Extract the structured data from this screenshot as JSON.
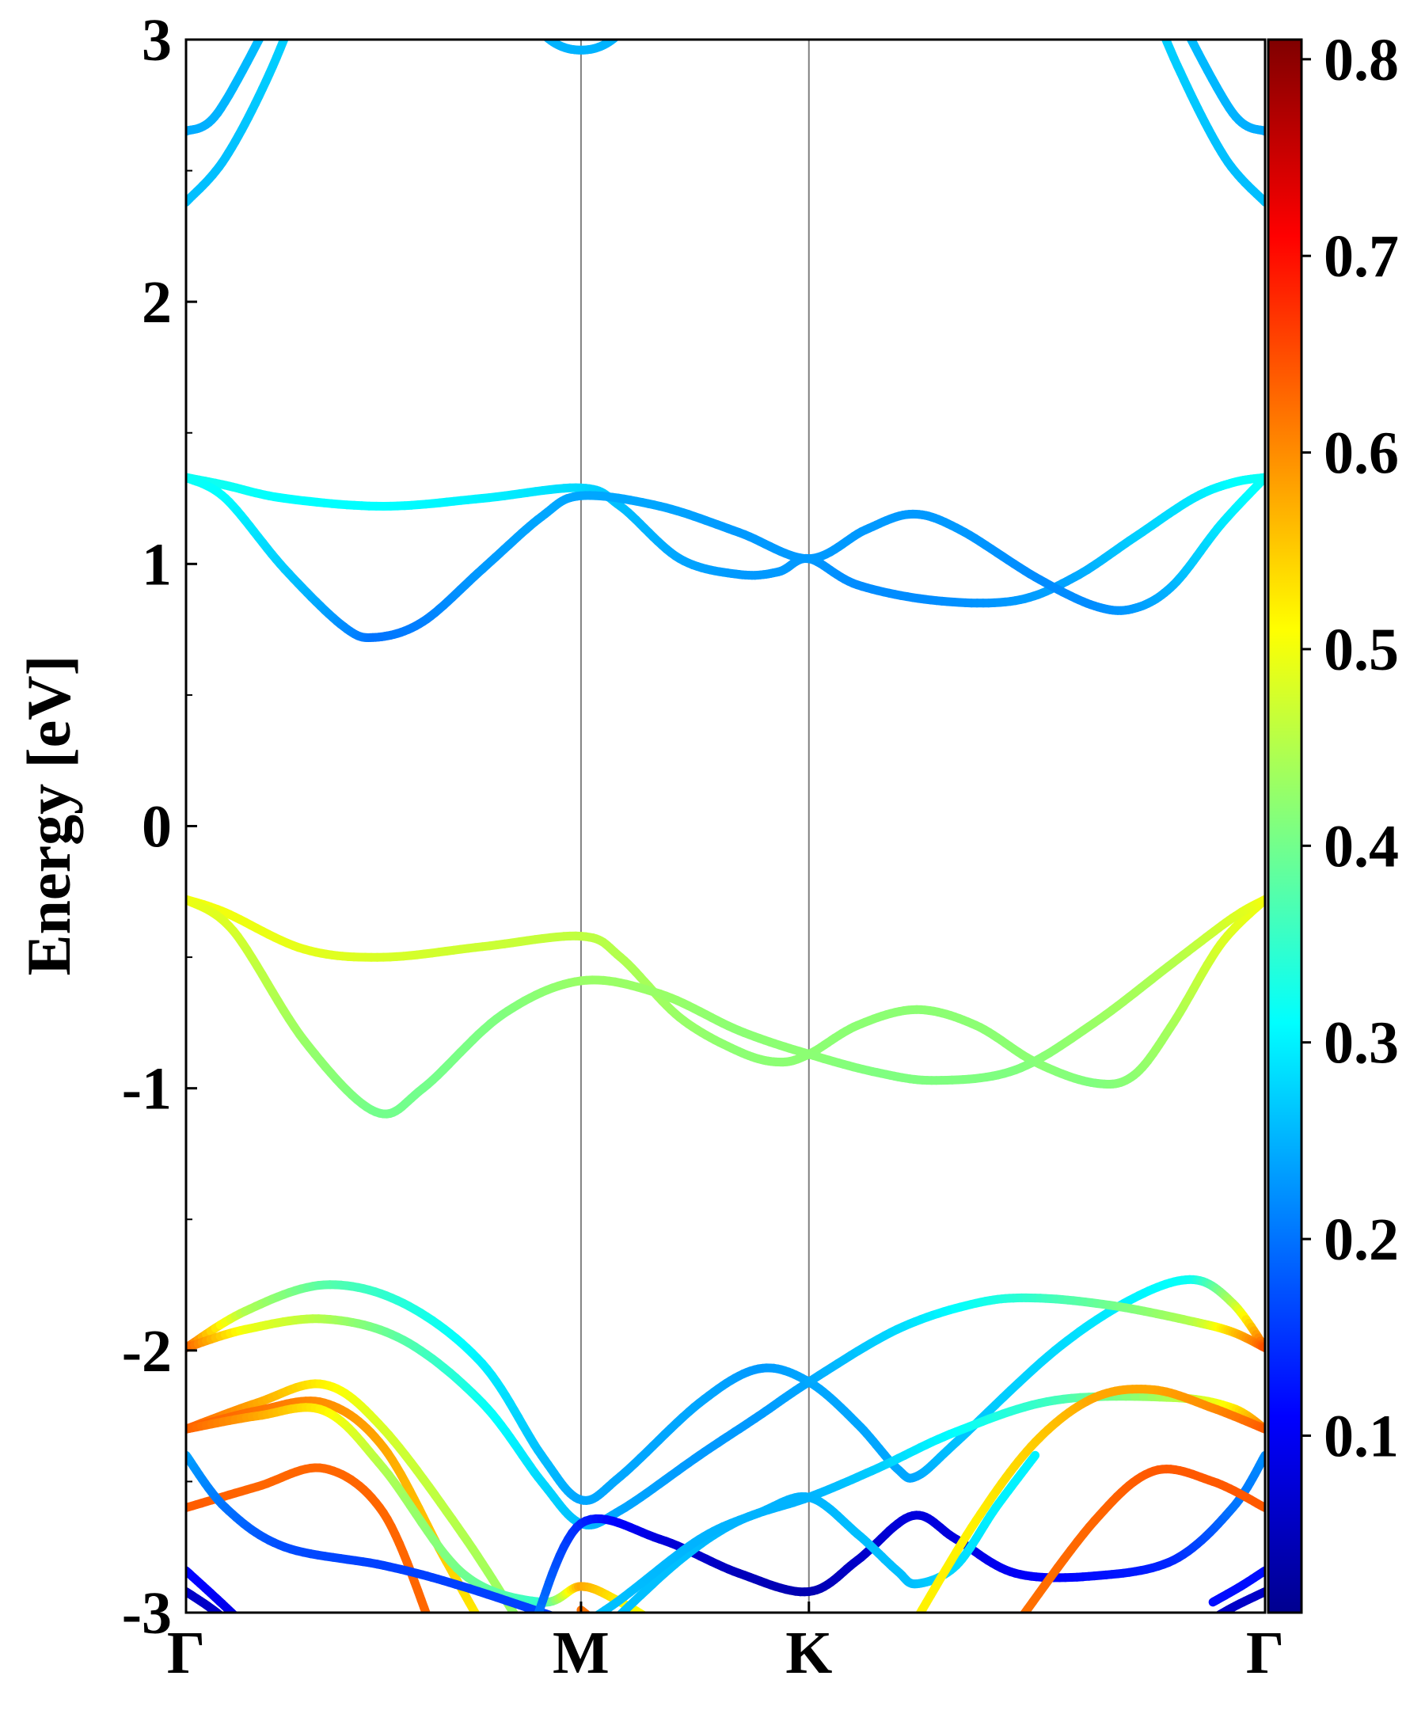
{
  "chart_data": {
    "type": "line",
    "title": "",
    "xlabel": "",
    "ylabel": "Energy [eV]",
    "ylim": [
      -3,
      3
    ],
    "yticks": [
      "3",
      "2",
      "1",
      "0",
      "-1",
      "-2",
      "-3"
    ],
    "ytick_values": [
      3,
      2,
      1,
      0,
      -1,
      -2,
      -3
    ],
    "kpath": [
      {
        "label": "Γ",
        "x": 0
      },
      {
        "label": "M",
        "x": 1
      },
      {
        "label": "K",
        "x": 1.577
      },
      {
        "label": "Γ",
        "x": 2.732
      }
    ],
    "colorbar": {
      "colormap": "jet",
      "range": [
        0.01,
        0.81
      ],
      "ticks": [
        "0.8",
        "0.7",
        "0.6",
        "0.5",
        "0.4",
        "0.3",
        "0.2",
        "0.1"
      ],
      "tick_values": [
        0.8,
        0.7,
        0.6,
        0.5,
        0.4,
        0.3,
        0.2,
        0.1
      ]
    },
    "bands": [
      {
        "points": [
          [
            0,
            2.38
          ],
          [
            0.1,
            2.55
          ],
          [
            0.22,
            2.9
          ],
          [
            0.35,
            3.4
          ]
        ],
        "w": [
          0.26,
          0.26,
          0.27,
          0.28
        ]
      },
      {
        "points": [
          [
            0,
            2.65
          ],
          [
            0.08,
            2.72
          ],
          [
            0.22,
            3.1
          ]
        ],
        "w": [
          0.24,
          0.25,
          0.26
        ]
      },
      {
        "points": [
          [
            0.85,
            3.1
          ],
          [
            0.93,
            2.99
          ],
          [
            1,
            2.96
          ],
          [
            1.07,
            2.99
          ],
          [
            1.15,
            3.1
          ]
        ],
        "w": [
          0.25,
          0.25,
          0.25,
          0.25,
          0.25
        ]
      },
      {
        "points": [
          [
            2.732,
            2.38
          ],
          [
            2.63,
            2.55
          ],
          [
            2.51,
            2.9
          ],
          [
            2.4,
            3.3
          ]
        ],
        "w": [
          0.26,
          0.26,
          0.27,
          0.28
        ]
      },
      {
        "points": [
          [
            2.732,
            2.65
          ],
          [
            2.65,
            2.72
          ],
          [
            2.51,
            3.1
          ]
        ],
        "w": [
          0.24,
          0.25,
          0.26
        ]
      },
      {
        "points": [
          [
            0,
            1.33
          ],
          [
            0.1,
            1.3
          ],
          [
            0.25,
            1.25
          ],
          [
            0.5,
            1.22
          ],
          [
            0.75,
            1.25
          ],
          [
            1,
            1.29
          ],
          [
            1.1,
            1.22
          ],
          [
            1.25,
            1.02
          ],
          [
            1.4,
            0.96
          ],
          [
            1.5,
            0.97
          ],
          [
            1.577,
            1.02
          ],
          [
            1.7,
            0.92
          ],
          [
            1.9,
            0.86
          ],
          [
            2.1,
            0.86
          ],
          [
            2.25,
            0.95
          ],
          [
            2.4,
            1.1
          ],
          [
            2.55,
            1.25
          ],
          [
            2.65,
            1.31
          ],
          [
            2.732,
            1.33
          ]
        ],
        "w": [
          0.32,
          0.32,
          0.31,
          0.31,
          0.3,
          0.28,
          0.26,
          0.24,
          0.23,
          0.23,
          0.23,
          0.22,
          0.22,
          0.23,
          0.24,
          0.27,
          0.29,
          0.31,
          0.32
        ]
      },
      {
        "points": [
          [
            0,
            1.33
          ],
          [
            0.1,
            1.25
          ],
          [
            0.25,
            0.98
          ],
          [
            0.4,
            0.76
          ],
          [
            0.48,
            0.72
          ],
          [
            0.6,
            0.78
          ],
          [
            0.75,
            0.98
          ],
          [
            0.9,
            1.18
          ],
          [
            1,
            1.26
          ],
          [
            1.2,
            1.22
          ],
          [
            1.4,
            1.12
          ],
          [
            1.577,
            1.02
          ],
          [
            1.72,
            1.13
          ],
          [
            1.84,
            1.19
          ],
          [
            1.96,
            1.13
          ],
          [
            2.15,
            0.95
          ],
          [
            2.3,
            0.84
          ],
          [
            2.4,
            0.83
          ],
          [
            2.5,
            0.92
          ],
          [
            2.62,
            1.15
          ],
          [
            2.732,
            1.33
          ]
        ],
        "w": [
          0.32,
          0.31,
          0.27,
          0.22,
          0.2,
          0.21,
          0.23,
          0.24,
          0.24,
          0.24,
          0.23,
          0.23,
          0.23,
          0.23,
          0.23,
          0.22,
          0.22,
          0.23,
          0.25,
          0.29,
          0.32
        ]
      },
      {
        "points": [
          [
            0,
            -0.28
          ],
          [
            0.1,
            -0.33
          ],
          [
            0.3,
            -0.47
          ],
          [
            0.5,
            -0.5
          ],
          [
            0.75,
            -0.46
          ],
          [
            1,
            -0.42
          ],
          [
            1.1,
            -0.5
          ],
          [
            1.25,
            -0.73
          ],
          [
            1.4,
            -0.86
          ],
          [
            1.5,
            -0.9
          ],
          [
            1.577,
            -0.87
          ],
          [
            1.7,
            -0.76
          ],
          [
            1.85,
            -0.7
          ],
          [
            2.0,
            -0.76
          ],
          [
            2.15,
            -0.9
          ],
          [
            2.3,
            -0.98
          ],
          [
            2.4,
            -0.95
          ],
          [
            2.5,
            -0.75
          ],
          [
            2.62,
            -0.45
          ],
          [
            2.732,
            -0.28
          ]
        ],
        "w": [
          0.5,
          0.5,
          0.49,
          0.48,
          0.47,
          0.46,
          0.45,
          0.43,
          0.42,
          0.42,
          0.42,
          0.42,
          0.42,
          0.42,
          0.42,
          0.41,
          0.42,
          0.44,
          0.48,
          0.5
        ]
      },
      {
        "points": [
          [
            0,
            -0.28
          ],
          [
            0.12,
            -0.4
          ],
          [
            0.3,
            -0.82
          ],
          [
            0.48,
            -1.09
          ],
          [
            0.6,
            -1.0
          ],
          [
            0.8,
            -0.72
          ],
          [
            1,
            -0.59
          ],
          [
            1.2,
            -0.64
          ],
          [
            1.4,
            -0.78
          ],
          [
            1.577,
            -0.87
          ],
          [
            1.75,
            -0.94
          ],
          [
            1.9,
            -0.97
          ],
          [
            2.1,
            -0.93
          ],
          [
            2.3,
            -0.75
          ],
          [
            2.5,
            -0.52
          ],
          [
            2.65,
            -0.35
          ],
          [
            2.732,
            -0.28
          ]
        ],
        "w": [
          0.5,
          0.48,
          0.43,
          0.4,
          0.4,
          0.41,
          0.43,
          0.43,
          0.42,
          0.42,
          0.41,
          0.41,
          0.41,
          0.43,
          0.45,
          0.48,
          0.5
        ]
      },
      {
        "points": [
          [
            0,
            -1.99
          ],
          [
            0.15,
            -1.85
          ],
          [
            0.35,
            -1.75
          ],
          [
            0.55,
            -1.82
          ],
          [
            0.75,
            -2.05
          ],
          [
            0.9,
            -2.4
          ],
          [
            1,
            -2.57
          ],
          [
            1.1,
            -2.48
          ],
          [
            1.3,
            -2.2
          ],
          [
            1.45,
            -2.07
          ],
          [
            1.577,
            -2.12
          ],
          [
            1.7,
            -2.28
          ],
          [
            1.8,
            -2.45
          ],
          [
            1.85,
            -2.48
          ],
          [
            1.95,
            -2.35
          ],
          [
            2.2,
            -2.0
          ],
          [
            2.4,
            -1.8
          ],
          [
            2.55,
            -1.73
          ],
          [
            2.65,
            -1.82
          ],
          [
            2.732,
            -1.99
          ]
        ],
        "w": [
          0.65,
          0.45,
          0.38,
          0.34,
          0.3,
          0.26,
          0.24,
          0.24,
          0.24,
          0.23,
          0.24,
          0.24,
          0.24,
          0.24,
          0.26,
          0.28,
          0.3,
          0.32,
          0.45,
          0.65
        ]
      },
      {
        "points": [
          [
            0,
            -1.99
          ],
          [
            0.15,
            -1.92
          ],
          [
            0.35,
            -1.88
          ],
          [
            0.55,
            -1.96
          ],
          [
            0.75,
            -2.2
          ],
          [
            0.9,
            -2.5
          ],
          [
            1,
            -2.66
          ],
          [
            1.1,
            -2.61
          ],
          [
            1.3,
            -2.4
          ],
          [
            1.45,
            -2.25
          ],
          [
            1.577,
            -2.12
          ],
          [
            1.8,
            -1.92
          ],
          [
            2.0,
            -1.82
          ],
          [
            2.15,
            -1.8
          ],
          [
            2.35,
            -1.83
          ],
          [
            2.55,
            -1.89
          ],
          [
            2.65,
            -1.93
          ],
          [
            2.732,
            -1.99
          ]
        ],
        "w": [
          0.65,
          0.5,
          0.45,
          0.38,
          0.32,
          0.28,
          0.26,
          0.24,
          0.23,
          0.23,
          0.24,
          0.28,
          0.32,
          0.35,
          0.4,
          0.45,
          0.55,
          0.65
        ]
      },
      {
        "points": [
          [
            0,
            -2.3
          ],
          [
            0.18,
            -2.2
          ],
          [
            0.35,
            -2.13
          ],
          [
            0.5,
            -2.3
          ],
          [
            0.7,
            -2.7
          ],
          [
            0.85,
            -3.05
          ]
        ],
        "w": [
          0.64,
          0.58,
          0.52,
          0.48,
          0.45,
          0.42
        ]
      },
      {
        "points": [
          [
            0,
            -2.3
          ],
          [
            0.18,
            -2.23
          ],
          [
            0.35,
            -2.2
          ],
          [
            0.5,
            -2.37
          ],
          [
            0.65,
            -2.78
          ],
          [
            0.75,
            -3.05
          ]
        ],
        "w": [
          0.64,
          0.62,
          0.6,
          0.58,
          0.55,
          0.52
        ]
      },
      {
        "points": [
          [
            0,
            -2.3
          ],
          [
            0.18,
            -2.25
          ],
          [
            0.35,
            -2.23
          ],
          [
            0.5,
            -2.45
          ],
          [
            0.7,
            -2.85
          ],
          [
            0.9,
            -2.96
          ],
          [
            1,
            -2.9
          ],
          [
            1.1,
            -2.96
          ],
          [
            1.2,
            -3.05
          ]
        ],
        "w": [
          0.64,
          0.58,
          0.52,
          0.45,
          0.4,
          0.35,
          0.58,
          0.52,
          0.5
        ]
      },
      {
        "points": [
          [
            0,
            -2.6
          ],
          [
            0.18,
            -2.52
          ],
          [
            0.35,
            -2.45
          ],
          [
            0.5,
            -2.62
          ],
          [
            0.62,
            -3.05
          ]
        ],
        "w": [
          0.64,
          0.63,
          0.63,
          0.63,
          0.63
        ]
      },
      {
        "points": [
          [
            1,
            -2.99
          ],
          [
            1.05,
            -3.05
          ]
        ],
        "w": [
          0.62,
          0.62
        ]
      },
      {
        "points": [
          [
            0,
            -2.4
          ],
          [
            0.1,
            -2.6
          ],
          [
            0.25,
            -2.75
          ],
          [
            0.5,
            -2.82
          ],
          [
            0.7,
            -2.9
          ],
          [
            1,
            -3.05
          ]
        ],
        "w": [
          0.24,
          0.2,
          0.17,
          0.16,
          0.16,
          0.16
        ]
      },
      {
        "points": [
          [
            0,
            -2.84
          ],
          [
            0.08,
            -2.95
          ],
          [
            0.15,
            -3.05
          ]
        ],
        "w": [
          0.12,
          0.1,
          0.08
        ]
      },
      {
        "points": [
          [
            0,
            -2.92
          ],
          [
            0.06,
            -2.98
          ],
          [
            0.12,
            -3.05
          ]
        ],
        "w": [
          0.06,
          0.06,
          0.06
        ]
      },
      {
        "points": [
          [
            0.88,
            -3.05
          ],
          [
            1,
            -2.66
          ],
          [
            1.2,
            -2.72
          ],
          [
            1.4,
            -2.85
          ],
          [
            1.577,
            -2.92
          ],
          [
            1.7,
            -2.8
          ],
          [
            1.84,
            -2.63
          ],
          [
            1.95,
            -2.72
          ],
          [
            2.1,
            -2.85
          ],
          [
            2.3,
            -2.86
          ],
          [
            2.5,
            -2.8
          ],
          [
            2.65,
            -2.6
          ],
          [
            2.732,
            -2.4
          ]
        ],
        "w": [
          0.22,
          0.14,
          0.08,
          0.05,
          0.04,
          0.06,
          0.08,
          0.08,
          0.1,
          0.12,
          0.14,
          0.2,
          0.22
        ]
      },
      {
        "points": [
          [
            1.07,
            -3.05
          ],
          [
            1.25,
            -2.8
          ],
          [
            1.4,
            -2.65
          ],
          [
            1.577,
            -2.56
          ],
          [
            1.75,
            -2.45
          ],
          [
            1.95,
            -2.31
          ],
          [
            2.2,
            -2.19
          ],
          [
            2.5,
            -2.18
          ],
          [
            2.65,
            -2.22
          ],
          [
            2.732,
            -2.3
          ]
        ],
        "w": [
          0.26,
          0.26,
          0.25,
          0.25,
          0.27,
          0.31,
          0.36,
          0.45,
          0.52,
          0.62
        ]
      },
      {
        "points": [
          [
            1,
            -3.05
          ],
          [
            1.1,
            -2.95
          ],
          [
            1.3,
            -2.72
          ],
          [
            1.45,
            -2.62
          ],
          [
            1.577,
            -2.56
          ],
          [
            1.7,
            -2.7
          ],
          [
            1.8,
            -2.84
          ],
          [
            1.85,
            -2.89
          ],
          [
            1.95,
            -2.82
          ],
          [
            2.05,
            -2.6
          ],
          [
            2.15,
            -2.4
          ]
        ],
        "w": [
          0.26,
          0.26,
          0.25,
          0.25,
          0.25,
          0.26,
          0.26,
          0.26,
          0.28,
          0.3,
          0.3
        ]
      },
      {
        "points": [
          [
            1.84,
            -3.05
          ],
          [
            2.0,
            -2.65
          ],
          [
            2.15,
            -2.35
          ],
          [
            2.3,
            -2.18
          ],
          [
            2.45,
            -2.15
          ],
          [
            2.6,
            -2.22
          ],
          [
            2.732,
            -2.3
          ]
        ],
        "w": [
          0.52,
          0.52,
          0.55,
          0.58,
          0.58,
          0.6,
          0.64
        ]
      },
      {
        "points": [
          [
            2.1,
            -3.05
          ],
          [
            2.3,
            -2.65
          ],
          [
            2.45,
            -2.46
          ],
          [
            2.6,
            -2.5
          ],
          [
            2.732,
            -2.6
          ]
        ],
        "w": [
          0.62,
          0.63,
          0.64,
          0.64,
          0.64
        ]
      },
      {
        "points": [
          [
            2.6,
            -2.96
          ],
          [
            2.67,
            -2.9
          ],
          [
            2.732,
            -2.84
          ]
        ],
        "w": [
          0.12,
          0.12,
          0.12
        ]
      },
      {
        "points": [
          [
            2.57,
            -3.05
          ],
          [
            2.65,
            -2.98
          ],
          [
            2.732,
            -2.92
          ]
        ],
        "w": [
          0.06,
          0.06,
          0.06
        ]
      }
    ]
  }
}
